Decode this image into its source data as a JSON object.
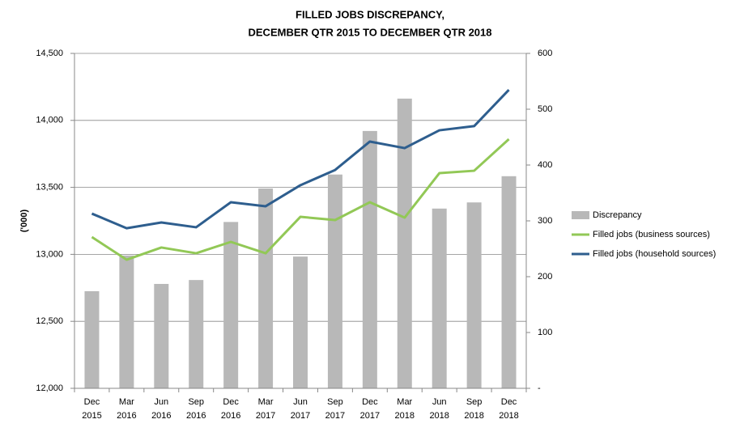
{
  "chart_data": {
    "type": "combo",
    "title": [
      "FILLED JOBS DISCREPANCY,",
      "DECEMBER QTR 2015 TO DECEMBER QTR 2018"
    ],
    "y_label": "('000)",
    "categories": [
      [
        "Dec",
        "2015"
      ],
      [
        "Mar",
        "2016"
      ],
      [
        "Jun",
        "2016"
      ],
      [
        "Sep",
        "2016"
      ],
      [
        "Dec",
        "2016"
      ],
      [
        "Mar",
        "2017"
      ],
      [
        "Jun",
        "2017"
      ],
      [
        "Sep",
        "2017"
      ],
      [
        "Dec",
        "2017"
      ],
      [
        "Mar",
        "2018"
      ],
      [
        "Jun",
        "2018"
      ],
      [
        "Sep",
        "2018"
      ],
      [
        "Dec",
        "2018"
      ]
    ],
    "series": [
      {
        "name": "Discrepancy",
        "type": "bar",
        "axis": "y2",
        "color": "#b8b8b8",
        "values": [
          174,
          238,
          187,
          194,
          298,
          358,
          236,
          383,
          461,
          519,
          322,
          333,
          380
        ]
      },
      {
        "name": "Filled jobs (business sources)",
        "type": "line",
        "color": "#92c856",
        "values": [
          13129,
          12960,
          13051,
          13008,
          13093,
          13008,
          13280,
          13256,
          13389,
          13274,
          13606,
          13624,
          13860
        ]
      },
      {
        "name": "Filled jobs (household sources)",
        "type": "line",
        "color": "#2e5e8e",
        "values": [
          13304,
          13195,
          13238,
          13202,
          13389,
          13359,
          13516,
          13630,
          13842,
          13793,
          13926,
          13957,
          14228
        ]
      }
    ],
    "ylim": [
      12000,
      14500
    ],
    "yticks": [
      {
        "value": 12000,
        "label": "12,000"
      },
      {
        "value": 12500,
        "label": "12,500"
      },
      {
        "value": 13000,
        "label": "13,000"
      },
      {
        "value": 13500,
        "label": "13,500"
      },
      {
        "value": 14000,
        "label": "14,000"
      },
      {
        "value": 14500,
        "label": "14,500"
      }
    ],
    "y2lim": [
      0,
      600
    ],
    "y2ticks": [
      {
        "value": 0,
        "label": "-"
      },
      100,
      200,
      300,
      400,
      500,
      600
    ],
    "grid": true,
    "legend": "right"
  }
}
